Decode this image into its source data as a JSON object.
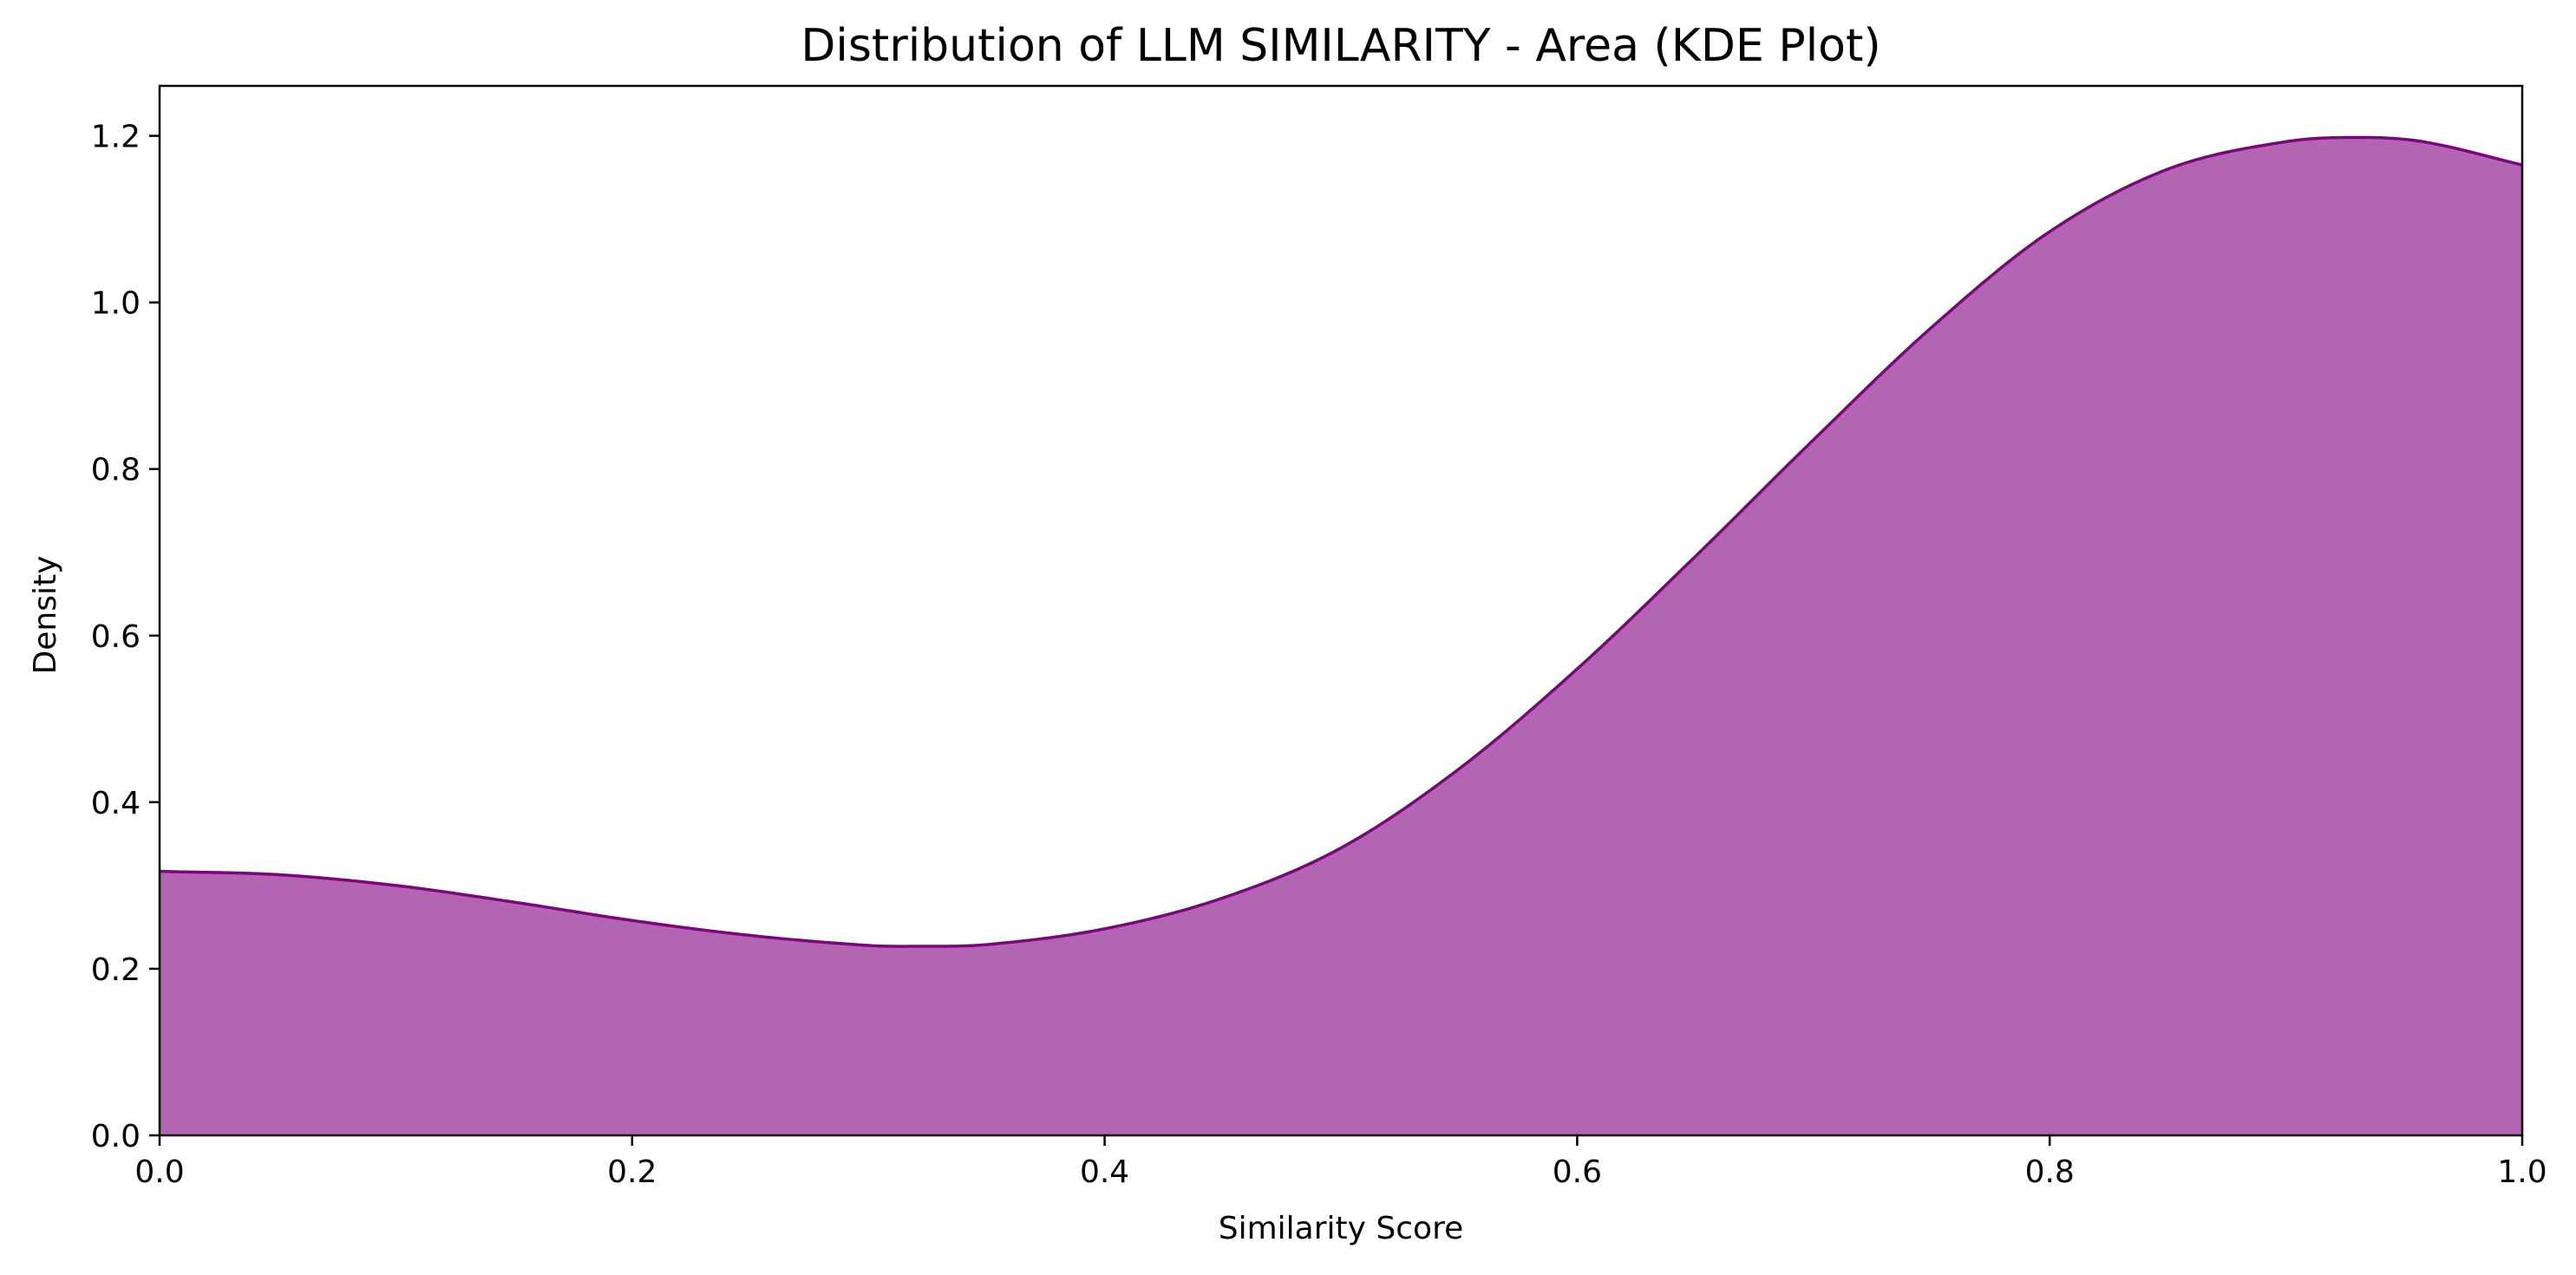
{
  "chart_data": {
    "type": "area",
    "title": "Distribution of LLM SIMILARITY - Area (KDE Plot)",
    "xlabel": "Similarity Score",
    "ylabel": "Density",
    "xlim": [
      0.0,
      1.0
    ],
    "ylim": [
      0.0,
      1.26
    ],
    "xticks": [
      0.0,
      0.2,
      0.4,
      0.6,
      0.8,
      1.0
    ],
    "xtick_labels": [
      "0.0",
      "0.2",
      "0.4",
      "0.6",
      "0.8",
      "1.0"
    ],
    "yticks": [
      0.0,
      0.2,
      0.4,
      0.6,
      0.8,
      1.0,
      1.2
    ],
    "ytick_labels": [
      "0.0",
      "0.2",
      "0.4",
      "0.6",
      "0.8",
      "1.0",
      "1.2"
    ],
    "grid": false,
    "legend": false,
    "colors": {
      "fill": "#b266b2",
      "line": "#800080",
      "axis": "#000000"
    },
    "series": [
      {
        "x": [
          0.0,
          0.05,
          0.1,
          0.15,
          0.2,
          0.25,
          0.3,
          0.32,
          0.35,
          0.4,
          0.45,
          0.5,
          0.55,
          0.6,
          0.65,
          0.7,
          0.75,
          0.8,
          0.85,
          0.9,
          0.935,
          0.96,
          1.0
        ],
        "y": [
          0.317,
          0.313,
          0.3,
          0.28,
          0.258,
          0.24,
          0.228,
          0.227,
          0.229,
          0.248,
          0.285,
          0.345,
          0.44,
          0.56,
          0.695,
          0.835,
          0.97,
          1.085,
          1.16,
          1.193,
          1.198,
          1.192,
          1.165
        ]
      }
    ]
  }
}
